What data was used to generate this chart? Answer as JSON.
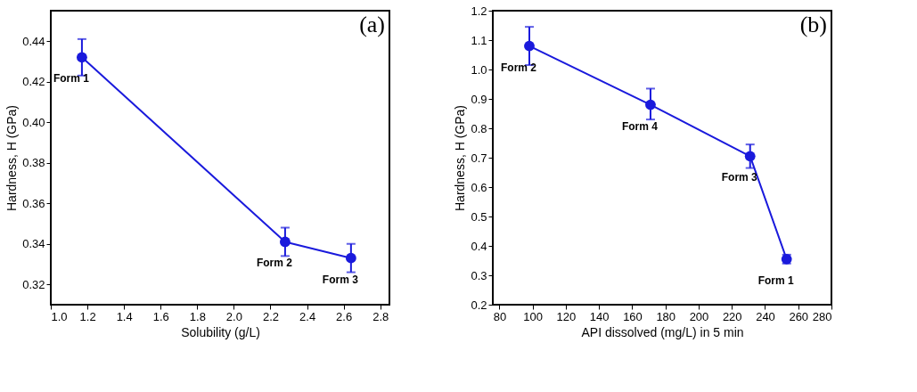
{
  "chart_data": [
    {
      "type": "line",
      "title": "(a)",
      "xlabel": "Solubility (g/L)",
      "ylabel": "Hardness, H (GPa)",
      "x": [
        1.17,
        2.28,
        2.64
      ],
      "series": [
        {
          "color": "#1a1adc",
          "values": [
            0.432,
            0.341,
            0.333
          ],
          "errors": [
            [
              0.423,
              0.441
            ],
            [
              0.334,
              0.348
            ],
            [
              0.326,
              0.34
            ]
          ]
        }
      ],
      "xlim": [
        1.0,
        2.85
      ],
      "xticks": [
        {
          "value": 1.0,
          "label": "1.0"
        },
        1.2,
        1.4,
        1.6,
        1.8,
        {
          "value": 2.0,
          "label": "2.0"
        },
        2.2,
        2.4,
        2.6,
        2.8
      ],
      "ylim": [
        0.31,
        0.455
      ],
      "yticks": [
        0.32,
        0.34,
        0.36,
        0.38,
        {
          "value": 0.4,
          "label": "0.40"
        },
        0.42,
        0.44
      ],
      "annotations": [
        {
          "text": "Form 1",
          "x": 1.17,
          "y": 0.432
        },
        {
          "text": "Form 2",
          "x": 2.28,
          "y": 0.341
        },
        {
          "text": "Form 3",
          "x": 2.64,
          "y": 0.333
        }
      ],
      "marker": "circle",
      "grid": false
    },
    {
      "type": "line",
      "title": "(b)",
      "xlabel": "API dissolved (mg/L) in 5 min",
      "ylabel": "Hardness, H (GPa)",
      "x": [
        98,
        171,
        231,
        253
      ],
      "series": [
        {
          "color": "#1a1adc",
          "values": [
            1.08,
            0.88,
            0.705,
            0.355
          ],
          "errors": [
            [
              1.015,
              1.145
            ],
            [
              0.83,
              0.935
            ],
            [
              0.665,
              0.745
            ],
            [
              0.34,
              0.37
            ]
          ]
        }
      ],
      "xlim": [
        76,
        280
      ],
      "xticks": [
        80,
        100,
        120,
        140,
        160,
        180,
        200,
        220,
        240,
        260,
        280
      ],
      "ylim": [
        0.2,
        1.2
      ],
      "yticks": [
        0.2,
        0.3,
        0.4,
        0.5,
        0.6,
        0.7,
        0.8,
        0.9,
        {
          "value": 1.0,
          "label": "1.0"
        },
        1.1,
        1.2
      ],
      "annotations": [
        {
          "text": "Form 2",
          "x": 98,
          "y": 1.08
        },
        {
          "text": "Form 4",
          "x": 171,
          "y": 0.88
        },
        {
          "text": "Form 3",
          "x": 231,
          "y": 0.705
        },
        {
          "text": "Form 1",
          "x": 253,
          "y": 0.355
        }
      ],
      "marker": "circle",
      "grid": false
    }
  ]
}
